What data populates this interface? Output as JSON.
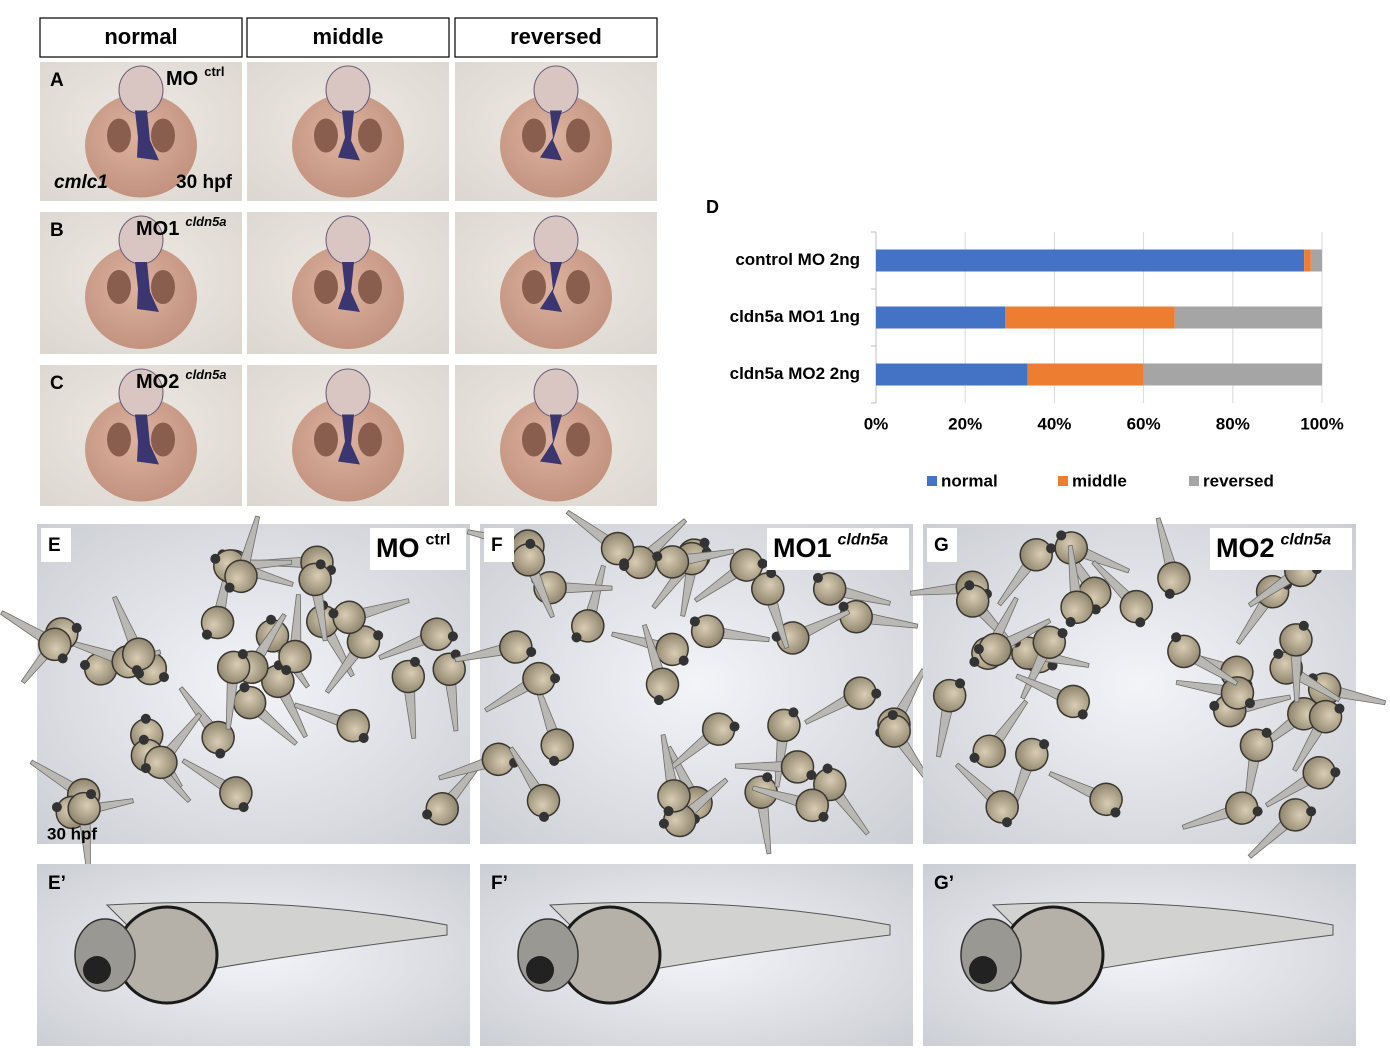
{
  "header": {
    "columns": [
      "normal",
      "middle",
      "reversed"
    ]
  },
  "rows": [
    {
      "label": "A",
      "treatment": "MO",
      "superscript": "ctrl",
      "marker": "cmlc1",
      "stage": "30 hpf"
    },
    {
      "label": "B",
      "treatment": "MO1",
      "superscript": "cldn5a"
    },
    {
      "label": "C",
      "treatment": "MO2",
      "superscript": "cldn5a"
    }
  ],
  "panels": [
    {
      "label": "E",
      "treatment": "MO",
      "superscript": "ctrl",
      "stage": "30 hpf",
      "closeup_label": "E’"
    },
    {
      "label": "F",
      "treatment": "MO1",
      "superscript": "cldn5a",
      "closeup_label": "F’"
    },
    {
      "label": "G",
      "treatment": "MO2",
      "superscript": "cldn5a",
      "closeup_label": "G’"
    }
  ],
  "chart_data": {
    "type": "bar",
    "orientation": "horizontal",
    "stacked": true,
    "label": "D",
    "categories": [
      "control MO 2ng",
      "cldn5a MO1 1ng",
      "cldn5a MO2 2ng"
    ],
    "series": [
      {
        "name": "normal",
        "color": "#4472c4",
        "values": [
          96,
          29,
          34
        ]
      },
      {
        "name": "middle",
        "color": "#ed7d31",
        "values": [
          1.5,
          38,
          26
        ]
      },
      {
        "name": "reversed",
        "color": "#a5a5a5",
        "values": [
          2.5,
          33,
          40
        ]
      }
    ],
    "xlim": [
      0,
      100
    ],
    "xticks": [
      {
        "value": 0,
        "label": "0%"
      },
      {
        "value": 20,
        "label": "20%"
      },
      {
        "value": 40,
        "label": "40%"
      },
      {
        "value": 60,
        "label": "60%"
      },
      {
        "value": 80,
        "label": "80%"
      },
      {
        "value": 100,
        "label": "100%"
      }
    ],
    "grid": true,
    "legend": "bottom"
  }
}
